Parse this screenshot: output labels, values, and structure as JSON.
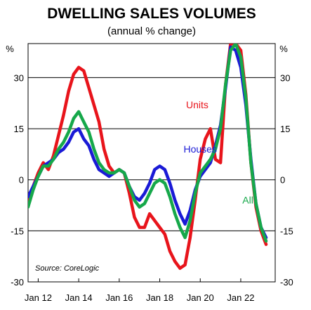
{
  "chart_data": {
    "type": "line",
    "title": "DWELLING SALES VOLUMES",
    "subtitle": "(annual % change)",
    "left_unit": "%",
    "right_unit": "%",
    "source": "Source: CoreLogic",
    "xlim": [
      2011.5,
      2023.7
    ],
    "ylim": [
      -30,
      40
    ],
    "y_ticks": [
      30,
      15,
      0,
      -15,
      -30
    ],
    "y_tick_labels": [
      "30",
      "15",
      "0",
      "-15",
      "-30"
    ],
    "x_ticks": [
      2012,
      2014,
      2016,
      2018,
      2020,
      2022
    ],
    "x_tick_labels": [
      "Jan 12",
      "Jan 14",
      "Jan 16",
      "Jan 18",
      "Jan 20",
      "Jan 22"
    ],
    "grid": true,
    "legend": "direct labels",
    "series": [
      {
        "name": "Units",
        "color": "#e8141b",
        "label_at": [
          2019.85,
          21
        ],
        "points": [
          [
            2011.5,
            -6
          ],
          [
            2011.75,
            -2
          ],
          [
            2012.0,
            2
          ],
          [
            2012.25,
            5
          ],
          [
            2012.5,
            3
          ],
          [
            2012.75,
            7
          ],
          [
            2013.0,
            13
          ],
          [
            2013.25,
            19
          ],
          [
            2013.5,
            26
          ],
          [
            2013.75,
            31
          ],
          [
            2014.0,
            33
          ],
          [
            2014.25,
            32
          ],
          [
            2014.5,
            27
          ],
          [
            2014.75,
            22
          ],
          [
            2015.0,
            17
          ],
          [
            2015.25,
            9
          ],
          [
            2015.5,
            4
          ],
          [
            2015.75,
            2
          ],
          [
            2016.0,
            3
          ],
          [
            2016.25,
            2
          ],
          [
            2016.5,
            -4
          ],
          [
            2016.75,
            -11
          ],
          [
            2017.0,
            -14
          ],
          [
            2017.25,
            -14
          ],
          [
            2017.5,
            -10
          ],
          [
            2017.75,
            -12
          ],
          [
            2018.0,
            -14
          ],
          [
            2018.25,
            -16
          ],
          [
            2018.5,
            -21
          ],
          [
            2018.75,
            -24
          ],
          [
            2019.0,
            -26
          ],
          [
            2019.25,
            -25
          ],
          [
            2019.5,
            -17
          ],
          [
            2019.75,
            -6
          ],
          [
            2020.0,
            6
          ],
          [
            2020.25,
            12
          ],
          [
            2020.5,
            15
          ],
          [
            2020.75,
            6
          ],
          [
            2021.0,
            5
          ],
          [
            2021.25,
            28
          ],
          [
            2021.5,
            40
          ],
          [
            2021.75,
            40
          ],
          [
            2022.0,
            38
          ],
          [
            2022.25,
            25
          ],
          [
            2022.5,
            5
          ],
          [
            2022.75,
            -8
          ],
          [
            2023.0,
            -15
          ],
          [
            2023.25,
            -19
          ]
        ]
      },
      {
        "name": "Houses",
        "color": "#1a1ad6",
        "label_at": [
          2020.0,
          8
        ],
        "points": [
          [
            2011.5,
            -5
          ],
          [
            2011.75,
            -2
          ],
          [
            2012.0,
            1
          ],
          [
            2012.25,
            4
          ],
          [
            2012.5,
            5
          ],
          [
            2012.75,
            6
          ],
          [
            2013.0,
            8
          ],
          [
            2013.25,
            9
          ],
          [
            2013.5,
            11
          ],
          [
            2013.75,
            14
          ],
          [
            2014.0,
            15
          ],
          [
            2014.25,
            12
          ],
          [
            2014.5,
            10
          ],
          [
            2014.75,
            6
          ],
          [
            2015.0,
            3
          ],
          [
            2015.25,
            2
          ],
          [
            2015.5,
            1
          ],
          [
            2015.75,
            2
          ],
          [
            2016.0,
            3
          ],
          [
            2016.25,
            2
          ],
          [
            2016.5,
            -2
          ],
          [
            2016.75,
            -5
          ],
          [
            2017.0,
            -6
          ],
          [
            2017.25,
            -4
          ],
          [
            2017.5,
            -1
          ],
          [
            2017.75,
            3
          ],
          [
            2018.0,
            4
          ],
          [
            2018.25,
            3
          ],
          [
            2018.5,
            -1
          ],
          [
            2018.75,
            -6
          ],
          [
            2019.0,
            -10
          ],
          [
            2019.25,
            -13
          ],
          [
            2019.5,
            -9
          ],
          [
            2019.75,
            -3
          ],
          [
            2020.0,
            1
          ],
          [
            2020.25,
            3
          ],
          [
            2020.5,
            5
          ],
          [
            2020.75,
            10
          ],
          [
            2021.0,
            16
          ],
          [
            2021.25,
            27
          ],
          [
            2021.5,
            39
          ],
          [
            2021.75,
            38
          ],
          [
            2022.0,
            33
          ],
          [
            2022.25,
            22
          ],
          [
            2022.5,
            6
          ],
          [
            2022.75,
            -7
          ],
          [
            2023.0,
            -14
          ],
          [
            2023.25,
            -17
          ]
        ]
      },
      {
        "name": "All",
        "color": "#16a84a",
        "label_at": [
          2022.35,
          -7
        ],
        "points": [
          [
            2011.5,
            -8
          ],
          [
            2011.75,
            -3
          ],
          [
            2012.0,
            1
          ],
          [
            2012.25,
            4
          ],
          [
            2012.5,
            4
          ],
          [
            2012.75,
            6
          ],
          [
            2013.0,
            9
          ],
          [
            2013.25,
            11
          ],
          [
            2013.5,
            14
          ],
          [
            2013.75,
            18
          ],
          [
            2014.0,
            20
          ],
          [
            2014.25,
            17
          ],
          [
            2014.5,
            14
          ],
          [
            2014.75,
            9
          ],
          [
            2015.0,
            5
          ],
          [
            2015.25,
            3
          ],
          [
            2015.5,
            2
          ],
          [
            2015.75,
            2
          ],
          [
            2016.0,
            3
          ],
          [
            2016.25,
            2
          ],
          [
            2016.5,
            -2
          ],
          [
            2016.75,
            -6
          ],
          [
            2017.0,
            -8
          ],
          [
            2017.25,
            -7
          ],
          [
            2017.5,
            -4
          ],
          [
            2017.75,
            -1
          ],
          [
            2018.0,
            0
          ],
          [
            2018.25,
            -1
          ],
          [
            2018.5,
            -5
          ],
          [
            2018.75,
            -10
          ],
          [
            2019.0,
            -14
          ],
          [
            2019.25,
            -17
          ],
          [
            2019.5,
            -12
          ],
          [
            2019.75,
            -4
          ],
          [
            2020.0,
            2
          ],
          [
            2020.25,
            4
          ],
          [
            2020.5,
            6
          ],
          [
            2020.75,
            9
          ],
          [
            2021.0,
            15
          ],
          [
            2021.25,
            28
          ],
          [
            2021.5,
            38
          ],
          [
            2021.75,
            40
          ],
          [
            2022.0,
            36
          ],
          [
            2022.25,
            24
          ],
          [
            2022.5,
            5
          ],
          [
            2022.75,
            -7
          ],
          [
            2023.0,
            -14
          ],
          [
            2023.25,
            -18
          ]
        ]
      }
    ]
  }
}
